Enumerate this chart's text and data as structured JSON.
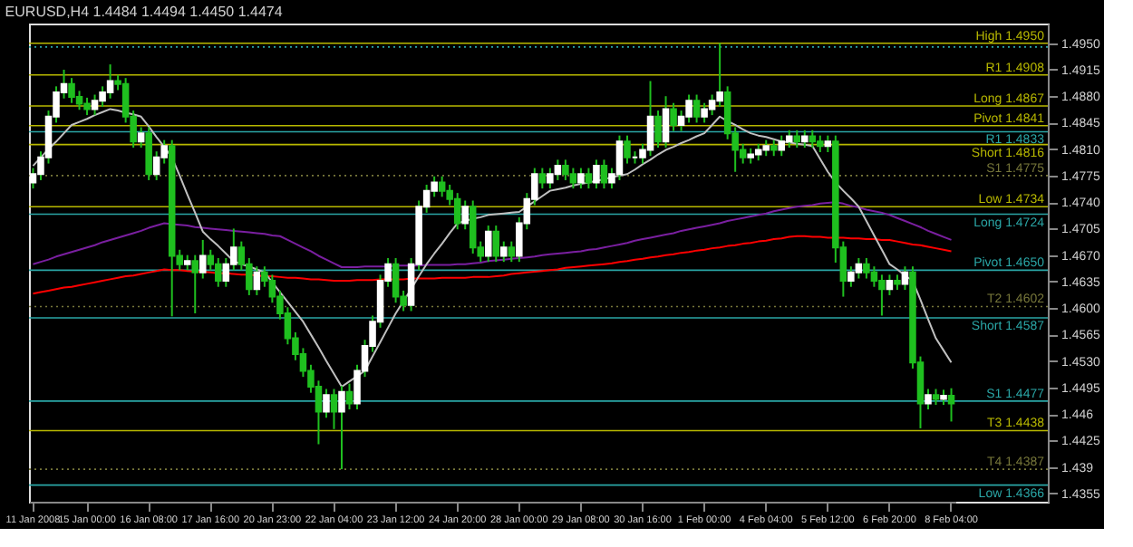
{
  "chart_data": {
    "type": "candlestick",
    "title": "EURUSD,H4 1.4484 1.4494 1.4450 1.4474",
    "categories": [
      "11 Jan 2008",
      null,
      null,
      null,
      null,
      null,
      null,
      "15 Jan 00:00",
      null,
      null,
      null,
      null,
      null,
      null,
      null,
      "16 Jan 08:00",
      null,
      null,
      null,
      null,
      null,
      null,
      null,
      "17 Jan 16:00",
      null,
      null,
      null,
      null,
      null,
      null,
      null,
      "20 Jan 23:00",
      null,
      null,
      null,
      null,
      null,
      null,
      null,
      "22 Jan 04:00",
      null,
      null,
      null,
      null,
      null,
      null,
      null,
      "23 Jan 12:00",
      null,
      null,
      null,
      null,
      null,
      null,
      null,
      "24 Jan 20:00",
      null,
      null,
      null,
      null,
      null,
      null,
      null,
      "28 Jan 00:00",
      null,
      null,
      null,
      null,
      null,
      null,
      null,
      "29 Jan 08:00",
      null,
      null,
      null,
      null,
      null,
      null,
      null,
      "30 Jan 16:00",
      null,
      null,
      null,
      null,
      null,
      null,
      null,
      "1 Feb 00:00",
      null,
      null,
      null,
      null,
      null,
      null,
      null,
      "4 Feb 04:00",
      null,
      null,
      null,
      null,
      null,
      null,
      null,
      "5 Feb 12:00",
      null,
      null,
      null,
      null,
      null,
      null,
      null,
      "6 Feb 20:00",
      null,
      null,
      null,
      null,
      null,
      null,
      null,
      "8 Feb 04:00"
    ],
    "ohlc": [
      [
        1.4766,
        1.4785,
        1.4758,
        1.4777
      ],
      [
        1.4777,
        1.4807,
        1.4769,
        1.4799
      ],
      [
        1.4799,
        1.4861,
        1.4791,
        1.4853
      ],
      [
        1.4853,
        1.4893,
        1.4845,
        1.4885
      ],
      [
        1.4885,
        1.4915,
        1.4877,
        1.4896
      ],
      [
        1.4896,
        1.4904,
        1.4871,
        1.4879
      ],
      [
        1.4879,
        1.4887,
        1.4862,
        1.487
      ],
      [
        1.487,
        1.4878,
        1.4855,
        1.4863
      ],
      [
        1.4863,
        1.4882,
        1.4855,
        1.4874
      ],
      [
        1.4874,
        1.4893,
        1.4866,
        1.4885
      ],
      [
        1.4885,
        1.4922,
        1.4877,
        1.49
      ],
      [
        1.49,
        1.4908,
        1.4888,
        1.4896
      ],
      [
        1.4896,
        1.4904,
        1.4845,
        1.4853
      ],
      [
        1.4853,
        1.4861,
        1.4812,
        1.482
      ],
      [
        1.482,
        1.4839,
        1.4812,
        1.4831
      ],
      [
        1.4831,
        1.4839,
        1.4769,
        1.4777
      ],
      [
        1.4777,
        1.4807,
        1.4769,
        1.4799
      ],
      [
        1.4799,
        1.4822,
        1.4791,
        1.4814
      ],
      [
        1.4814,
        1.4822,
        1.4589,
        1.4669
      ],
      [
        1.4669,
        1.4677,
        1.465,
        1.4658
      ],
      [
        1.4658,
        1.467,
        1.465,
        1.4662
      ],
      [
        1.4662,
        1.467,
        1.4593,
        1.4647
      ],
      [
        1.4647,
        1.469,
        1.4639,
        1.4669
      ],
      [
        1.4669,
        1.4677,
        1.465,
        1.4658
      ],
      [
        1.4658,
        1.4666,
        1.4628,
        1.4636
      ],
      [
        1.4636,
        1.4666,
        1.4628,
        1.4658
      ],
      [
        1.4658,
        1.4705,
        1.465,
        1.468
      ],
      [
        1.468,
        1.4688,
        1.465,
        1.4658
      ],
      [
        1.4658,
        1.4666,
        1.4617,
        1.4625
      ],
      [
        1.4625,
        1.4655,
        1.4617,
        1.4647
      ],
      [
        1.4647,
        1.4655,
        1.4628,
        1.4636
      ],
      [
        1.4636,
        1.4644,
        1.4607,
        1.4615
      ],
      [
        1.4615,
        1.4623,
        1.4585,
        1.4593
      ],
      [
        1.4593,
        1.4601,
        1.4552,
        1.456
      ],
      [
        1.456,
        1.4568,
        1.4531,
        1.4539
      ],
      [
        1.4539,
        1.4547,
        1.4509,
        1.4517
      ],
      [
        1.4517,
        1.4525,
        1.4488,
        1.4496
      ],
      [
        1.4496,
        1.4504,
        1.442,
        1.4463
      ],
      [
        1.4463,
        1.4493,
        1.4455,
        1.4485
      ],
      [
        1.4485,
        1.4493,
        1.444,
        1.4463
      ],
      [
        1.4463,
        1.4497,
        1.4387,
        1.4489
      ],
      [
        1.4489,
        1.45,
        1.4466,
        1.4474
      ],
      [
        1.4474,
        1.4525,
        1.4466,
        1.4517
      ],
      [
        1.4517,
        1.4558,
        1.4509,
        1.455
      ],
      [
        1.455,
        1.459,
        1.4542,
        1.4582
      ],
      [
        1.4582,
        1.4644,
        1.4574,
        1.4636
      ],
      [
        1.4636,
        1.4666,
        1.4628,
        1.4658
      ],
      [
        1.4658,
        1.4666,
        1.4607,
        1.4615
      ],
      [
        1.4615,
        1.4623,
        1.4596,
        1.4604
      ],
      [
        1.4604,
        1.4666,
        1.4596,
        1.4658
      ],
      [
        1.4658,
        1.4742,
        1.465,
        1.4734
      ],
      [
        1.4734,
        1.4763,
        1.4726,
        1.4755
      ],
      [
        1.4755,
        1.4774,
        1.4747,
        1.4766
      ],
      [
        1.4766,
        1.4774,
        1.4747,
        1.4755
      ],
      [
        1.4755,
        1.4763,
        1.4736,
        1.4744
      ],
      [
        1.4744,
        1.4752,
        1.4704,
        1.4712
      ],
      [
        1.4712,
        1.4742,
        1.4704,
        1.4734
      ],
      [
        1.4734,
        1.4742,
        1.4672,
        1.468
      ],
      [
        1.468,
        1.4688,
        1.4661,
        1.4669
      ],
      [
        1.4669,
        1.4709,
        1.4661,
        1.4701
      ],
      [
        1.4701,
        1.4709,
        1.4661,
        1.4669
      ],
      [
        1.4669,
        1.4688,
        1.4661,
        1.468
      ],
      [
        1.468,
        1.4688,
        1.4661,
        1.4669
      ],
      [
        1.4669,
        1.472,
        1.4661,
        1.4712
      ],
      [
        1.4712,
        1.4752,
        1.4704,
        1.4744
      ],
      [
        1.4744,
        1.4785,
        1.4736,
        1.4777
      ],
      [
        1.4777,
        1.4785,
        1.4758,
        1.4766
      ],
      [
        1.4766,
        1.4785,
        1.4758,
        1.4777
      ],
      [
        1.4777,
        1.4796,
        1.4769,
        1.4788
      ],
      [
        1.4788,
        1.4796,
        1.4769,
        1.4777
      ],
      [
        1.4777,
        1.4785,
        1.4758,
        1.4766
      ],
      [
        1.4766,
        1.4785,
        1.4758,
        1.4777
      ],
      [
        1.4777,
        1.4785,
        1.4758,
        1.4766
      ],
      [
        1.4766,
        1.4796,
        1.4758,
        1.4788
      ],
      [
        1.4788,
        1.4796,
        1.4758,
        1.4766
      ],
      [
        1.4766,
        1.4785,
        1.4758,
        1.4777
      ],
      [
        1.4777,
        1.4828,
        1.4769,
        1.482
      ],
      [
        1.482,
        1.4828,
        1.4791,
        1.4799
      ],
      [
        1.4799,
        1.4807,
        1.4791,
        1.4799
      ],
      [
        1.4799,
        1.4817,
        1.4791,
        1.4809
      ],
      [
        1.4809,
        1.49,
        1.4801,
        1.4853
      ],
      [
        1.4853,
        1.4861,
        1.4812,
        1.482
      ],
      [
        1.482,
        1.488,
        1.4812,
        1.4863
      ],
      [
        1.4863,
        1.4871,
        1.4834,
        1.4842
      ],
      [
        1.4842,
        1.4861,
        1.4834,
        1.4853
      ],
      [
        1.4853,
        1.4882,
        1.4845,
        1.4874
      ],
      [
        1.4874,
        1.4882,
        1.4845,
        1.4853
      ],
      [
        1.4853,
        1.4871,
        1.4845,
        1.4863
      ],
      [
        1.4863,
        1.4882,
        1.4855,
        1.4874
      ],
      [
        1.4874,
        1.495,
        1.4866,
        1.4885
      ],
      [
        1.4885,
        1.4893,
        1.4823,
        1.4831
      ],
      [
        1.4831,
        1.4839,
        1.478,
        1.4809
      ],
      [
        1.4809,
        1.4817,
        1.4791,
        1.4799
      ],
      [
        1.4799,
        1.4811,
        1.4791,
        1.4803
      ],
      [
        1.4803,
        1.4817,
        1.4795,
        1.4809
      ],
      [
        1.4809,
        1.4822,
        1.4801,
        1.4814
      ],
      [
        1.4814,
        1.4822,
        1.4801,
        1.4809
      ],
      [
        1.4809,
        1.4828,
        1.4801,
        1.482
      ],
      [
        1.482,
        1.4835,
        1.4812,
        1.4827
      ],
      [
        1.4827,
        1.4835,
        1.4812,
        1.482
      ],
      [
        1.482,
        1.4835,
        1.4812,
        1.4827
      ],
      [
        1.4827,
        1.4835,
        1.4812,
        1.482
      ],
      [
        1.482,
        1.4828,
        1.4806,
        1.4814
      ],
      [
        1.4814,
        1.4828,
        1.4806,
        1.482
      ],
      [
        1.482,
        1.4828,
        1.466,
        1.468
      ],
      [
        1.468,
        1.4688,
        1.4615,
        1.4636
      ],
      [
        1.4636,
        1.4655,
        1.4628,
        1.4647
      ],
      [
        1.4647,
        1.4666,
        1.4639,
        1.4658
      ],
      [
        1.4658,
        1.4666,
        1.4639,
        1.4647
      ],
      [
        1.4647,
        1.4655,
        1.4628,
        1.4636
      ],
      [
        1.4636,
        1.4644,
        1.459,
        1.4625
      ],
      [
        1.4625,
        1.4644,
        1.4617,
        1.4636
      ],
      [
        1.4636,
        1.4644,
        1.4624,
        1.4632
      ],
      [
        1.4632,
        1.4655,
        1.4624,
        1.4647
      ],
      [
        1.4647,
        1.4655,
        1.452,
        1.4528
      ],
      [
        1.4528,
        1.4536,
        1.4441,
        1.4474
      ],
      [
        1.4474,
        1.4493,
        1.4466,
        1.4485
      ],
      [
        1.4485,
        1.4493,
        1.4472,
        1.448
      ],
      [
        1.448,
        1.4492,
        1.4472,
        1.4484
      ],
      [
        1.4484,
        1.4494,
        1.445,
        1.4474
      ]
    ],
    "series": [
      {
        "type": "line",
        "color": "#ff0000",
        "values": [
          1.4619,
          1.4621,
          1.4623,
          1.4625,
          1.4627,
          1.4628,
          1.463,
          1.4632,
          1.4634,
          1.4636,
          1.4638,
          1.464,
          1.4642,
          1.4643,
          1.4645,
          1.4647,
          1.4649,
          1.4651,
          1.465,
          1.465,
          1.4649,
          1.4648,
          1.4648,
          1.4647,
          1.4646,
          1.4646,
          1.4645,
          1.4644,
          1.4644,
          1.4643,
          1.4642,
          1.4642,
          1.4641,
          1.464,
          1.464,
          1.4639,
          1.4638,
          1.4638,
          1.4637,
          1.4636,
          1.4636,
          1.4636,
          1.4637,
          1.4637,
          1.4637,
          1.4638,
          1.4638,
          1.4638,
          1.4638,
          1.4639,
          1.4639,
          1.4639,
          1.4639,
          1.464,
          1.464,
          1.464,
          1.464,
          1.4641,
          1.4641,
          1.4641,
          1.4642,
          1.4643,
          1.4645,
          1.4646,
          1.4647,
          1.4648,
          1.4649,
          1.465,
          1.4651,
          1.4653,
          1.4654,
          1.4655,
          1.4656,
          1.4657,
          1.4658,
          1.4659,
          1.4661,
          1.4662,
          1.4664,
          1.4665,
          1.4667,
          1.4668,
          1.467,
          1.4671,
          1.4673,
          1.4674,
          1.4676,
          1.4677,
          1.4679,
          1.468,
          1.4682,
          1.4683,
          1.4685,
          1.4686,
          1.4688,
          1.4689,
          1.4691,
          1.4692,
          1.4694,
          1.4695,
          1.4695,
          1.4694,
          1.4694,
          1.4693,
          1.4693,
          1.4693,
          1.4692,
          1.4692,
          1.4691,
          1.4691,
          1.469,
          1.469,
          1.4688,
          1.4686,
          1.4684,
          1.4683,
          1.4681,
          1.4679,
          1.4677,
          1.4675
        ]
      },
      {
        "type": "line",
        "color": "#7a1fa0",
        "values": [
          1.4658,
          1.4661,
          1.4664,
          1.4668,
          1.4671,
          1.4674,
          1.4677,
          1.468,
          1.4683,
          1.4687,
          1.469,
          1.4693,
          1.4696,
          1.4699,
          1.4702,
          1.4706,
          1.4709,
          1.4712,
          1.4711,
          1.471,
          1.4709,
          1.4707,
          1.4706,
          1.4705,
          1.4704,
          1.4703,
          1.4702,
          1.4701,
          1.47,
          1.4699,
          1.4698,
          1.4696,
          1.4695,
          1.469,
          1.4685,
          1.468,
          1.4675,
          1.4669,
          1.4664,
          1.4659,
          1.4654,
          1.4654,
          1.4654,
          1.4655,
          1.4655,
          1.4655,
          1.4655,
          1.4656,
          1.4656,
          1.4656,
          1.4656,
          1.4657,
          1.4657,
          1.4657,
          1.4657,
          1.4658,
          1.4658,
          1.4659,
          1.466,
          1.4662,
          1.4663,
          1.4664,
          1.4665,
          1.4666,
          1.4667,
          1.4668,
          1.467,
          1.4671,
          1.4672,
          1.4673,
          1.4674,
          1.4675,
          1.4677,
          1.4678,
          1.468,
          1.4682,
          1.4684,
          1.4686,
          1.4689,
          1.4691,
          1.4693,
          1.4695,
          1.4697,
          1.4699,
          1.4702,
          1.4704,
          1.4706,
          1.4708,
          1.471,
          1.4712,
          1.4715,
          1.4717,
          1.4719,
          1.4721,
          1.4723,
          1.4725,
          1.4728,
          1.473,
          1.4732,
          1.4734,
          1.4735,
          1.4736,
          1.4738,
          1.4739,
          1.474,
          1.4738,
          1.4735,
          1.4733,
          1.473,
          1.4728,
          1.4726,
          1.4723,
          1.4719,
          1.4715,
          1.4711,
          1.4707,
          1.4702,
          1.4698,
          1.4694,
          1.469
        ]
      },
      {
        "type": "line",
        "color": "#c0c0c0",
        "values": [
          1.4788,
          1.4799,
          1.481,
          1.482,
          1.4831,
          1.4842,
          1.4846,
          1.485,
          1.4855,
          1.4859,
          1.4863,
          1.4861,
          1.4858,
          1.4856,
          1.4853,
          1.484,
          1.4826,
          1.4813,
          1.4799,
          1.4775,
          1.475,
          1.4726,
          1.4701,
          1.4691,
          1.4682,
          1.4672,
          1.4662,
          1.4658,
          1.4655,
          1.4651,
          1.4647,
          1.4634,
          1.4621,
          1.4608,
          1.4595,
          1.4582,
          1.4565,
          1.4548,
          1.453,
          1.4513,
          1.4496,
          1.4503,
          1.451,
          1.4517,
          1.4536,
          1.4555,
          1.4574,
          1.4593,
          1.4609,
          1.4625,
          1.4642,
          1.4658,
          1.4672,
          1.4685,
          1.4699,
          1.4712,
          1.4715,
          1.4718,
          1.472,
          1.4723,
          1.4724,
          1.4725,
          1.4726,
          1.4727,
          1.4734,
          1.4741,
          1.4748,
          1.4755,
          1.4757,
          1.4759,
          1.4762,
          1.4764,
          1.4766,
          1.4768,
          1.477,
          1.4773,
          1.4775,
          1.4777,
          1.4783,
          1.479,
          1.4796,
          1.4803,
          1.4809,
          1.4813,
          1.4818,
          1.4822,
          1.4827,
          1.4831,
          1.4842,
          1.4853,
          1.4847,
          1.4842,
          1.4836,
          1.4831,
          1.4828,
          1.4826,
          1.4823,
          1.482,
          1.4819,
          1.4817,
          1.4816,
          1.4814,
          1.4797,
          1.478,
          1.4766,
          1.4755,
          1.4745,
          1.4734,
          1.4715,
          1.4696,
          1.4677,
          1.4658,
          1.4651,
          1.4643,
          1.4636,
          1.4611,
          1.4585,
          1.456,
          1.4544,
          1.4528
        ]
      }
    ],
    "ylim": [
      1.4344,
      1.4976
    ],
    "yticks": [
      1.4355,
      1.439,
      1.4425,
      1.446,
      1.4495,
      {
        "value": 1.453,
        "label": "1.4530"
      },
      1.4565,
      {
        "value": 1.46,
        "label": "1.4600"
      },
      1.4635,
      {
        "value": 1.467,
        "label": "1.4670"
      },
      1.4705,
      {
        "value": 1.474,
        "label": "1.4740"
      },
      1.4775,
      {
        "value": 1.481,
        "label": "1.4810"
      },
      1.4845,
      {
        "value": 1.488,
        "label": "1.4880"
      },
      1.4915,
      {
        "value": 1.495,
        "label": "1.4950"
      }
    ],
    "ref_lines": [
      {
        "axis": "y",
        "value": 1.495,
        "label": "High 1.4950",
        "color": "#b8b800"
      },
      {
        "axis": "y",
        "value": 1.4945,
        "label": null,
        "color": "#2aa6a6",
        "line_style": "dotted"
      },
      {
        "axis": "y",
        "value": 1.4908,
        "label": "R1 1.4908",
        "color": "#b8b800"
      },
      {
        "axis": "y",
        "value": 1.4867,
        "label": "Long 1.4867",
        "color": "#b8b800"
      },
      {
        "axis": "y",
        "value": 1.4841,
        "label": "Pivot 1.4841",
        "color": "#b8b800"
      },
      {
        "axis": "y",
        "value": 1.4833,
        "label": "R1 1.4833",
        "color": "#2aa6a6"
      },
      {
        "axis": "y",
        "value": 1.4816,
        "label": "Short 1.4816",
        "color": "#b8b800"
      },
      {
        "axis": "y",
        "value": 1.4775,
        "label": "S1 1.4775",
        "color": "#77773a",
        "line_style": "dotted"
      },
      {
        "axis": "y",
        "value": 1.4734,
        "label": "Low 1.4734",
        "color": "#b8b800"
      },
      {
        "axis": "y",
        "value": 1.4724,
        "label": "Long 1.4724",
        "color": "#2aa6a6"
      },
      {
        "axis": "y",
        "value": 1.465,
        "label": "Pivot 1.4650",
        "color": "#2aa6a6"
      },
      {
        "axis": "y",
        "value": 1.4602,
        "label": "T2 1.4602",
        "color": "#77773a",
        "line_style": "dotted"
      },
      {
        "axis": "y",
        "value": 1.4587,
        "label": "Short 1.4587",
        "color": "#2aa6a6"
      },
      {
        "axis": "y",
        "value": 1.4477,
        "label": "S1 1.4477",
        "color": "#2aa6a6"
      },
      {
        "axis": "y",
        "value": 1.4438,
        "label": "T3 1.4438",
        "color": "#b8b800"
      },
      {
        "axis": "y",
        "value": 1.4387,
        "label": "T4 1.4387",
        "color": "#77773a",
        "line_style": "dotted"
      },
      {
        "axis": "y",
        "value": 1.4366,
        "label": "Low 1.4366",
        "color": "#2aa6a6"
      }
    ]
  }
}
